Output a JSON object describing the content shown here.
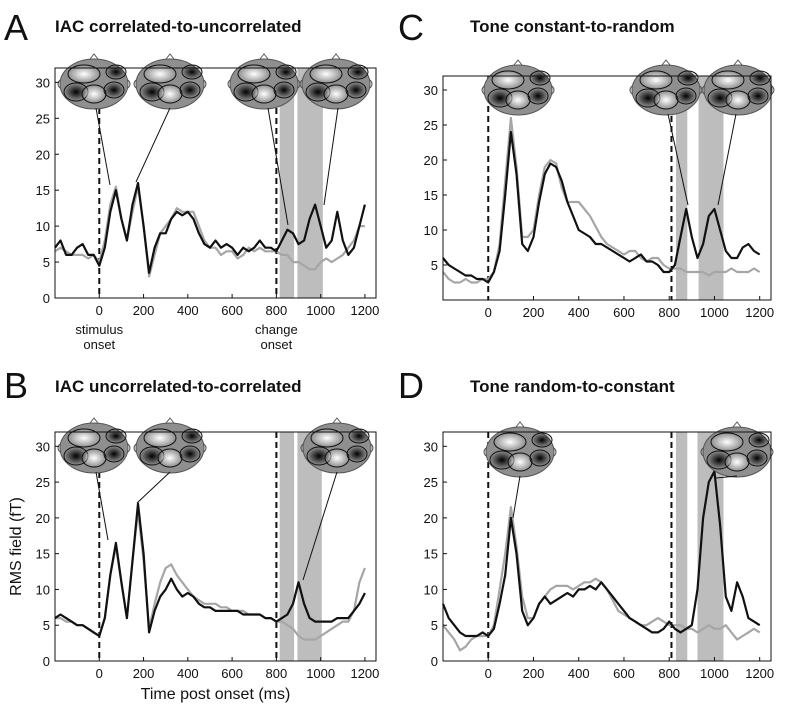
{
  "chart_data": [
    {
      "type": "line",
      "panel_label": "A",
      "title": "IAC correlated-to-uncorrelated",
      "annotations": [
        "stimulus onset",
        "change onset"
      ],
      "x": [
        -200,
        -175,
        -150,
        -125,
        -100,
        -75,
        -50,
        -25,
        0,
        25,
        50,
        75,
        100,
        125,
        150,
        175,
        200,
        225,
        250,
        275,
        300,
        325,
        350,
        375,
        400,
        425,
        450,
        475,
        500,
        525,
        550,
        575,
        600,
        625,
        650,
        675,
        700,
        725,
        750,
        775,
        800,
        825,
        850,
        875,
        900,
        925,
        950,
        975,
        1000,
        1025,
        1050,
        1075,
        1100,
        1125,
        1150,
        1175,
        1200
      ],
      "series": [
        {
          "color": "#a6a6a6",
          "values": [
            6.5,
            7,
            6.5,
            6,
            6,
            6,
            5.5,
            6,
            5,
            8,
            13,
            15.5,
            11,
            8,
            12,
            15.5,
            10,
            3,
            6,
            9,
            10,
            11,
            12.5,
            12,
            12,
            12,
            10,
            8,
            7,
            7,
            6,
            6.5,
            6.5,
            5.5,
            6,
            7,
            6.5,
            7,
            6.5,
            6.5,
            6.5,
            6,
            6,
            5,
            5,
            4.5,
            4,
            4,
            5,
            5.5,
            5,
            5.5,
            6,
            7,
            8,
            10,
            10
          ]
        },
        {
          "color": "#111111",
          "values": [
            7,
            8,
            6,
            6,
            7,
            7.5,
            6,
            6,
            4.5,
            7,
            12,
            15,
            11,
            8,
            13,
            16,
            10,
            3.5,
            7,
            9,
            9,
            11,
            12,
            11.5,
            12,
            11,
            9,
            7.5,
            7,
            8,
            7,
            7.5,
            7,
            6,
            7,
            6.5,
            7,
            8,
            7,
            7,
            6.5,
            8,
            9.5,
            9,
            7.5,
            8,
            11,
            13,
            10,
            7,
            8,
            12,
            8,
            6,
            7,
            10,
            13
          ]
        }
      ],
      "xlim": [
        -200,
        1250
      ],
      "ylim": [
        0,
        32
      ],
      "xticks": [
        0,
        200,
        400,
        600,
        800,
        1000,
        1200
      ],
      "yticks": [
        0,
        5,
        10,
        15,
        20,
        25,
        30
      ],
      "shaded": [
        [
          815,
          880
        ],
        [
          895,
          1010
        ]
      ],
      "vlines": [
        0,
        800
      ]
    },
    {
      "type": "line",
      "panel_label": "B",
      "title": "IAC uncorrelated-to-correlated",
      "xlabel": "Time post onset (ms)",
      "ylabel": "RMS field (fT)",
      "x": [
        -200,
        -175,
        -150,
        -125,
        -100,
        -75,
        -50,
        -25,
        0,
        25,
        50,
        75,
        100,
        125,
        150,
        175,
        200,
        225,
        250,
        275,
        300,
        325,
        350,
        375,
        400,
        425,
        450,
        475,
        500,
        525,
        550,
        575,
        600,
        625,
        650,
        675,
        700,
        725,
        750,
        775,
        800,
        825,
        850,
        875,
        900,
        925,
        950,
        975,
        1000,
        1025,
        1050,
        1075,
        1100,
        1125,
        1150,
        1175,
        1200
      ],
      "series": [
        {
          "color": "#a6a6a6",
          "values": [
            6,
            6,
            5.5,
            5.5,
            5,
            5,
            4.5,
            4,
            3.5,
            6,
            12,
            16,
            11,
            6,
            14,
            21,
            14,
            4.5,
            8,
            11,
            13,
            13.5,
            12,
            11,
            10,
            9,
            8.5,
            8,
            8,
            8,
            7.5,
            7.5,
            7,
            7,
            7,
            6.5,
            6.5,
            6.5,
            6,
            6,
            5.5,
            5.5,
            5,
            4.5,
            3.5,
            3,
            3,
            3,
            3.5,
            4,
            4.5,
            5,
            5.5,
            5.5,
            7,
            11,
            13
          ]
        },
        {
          "color": "#111111",
          "values": [
            6,
            6.5,
            6,
            5.5,
            5,
            5,
            4.5,
            4,
            3.5,
            6,
            12,
            16.5,
            11,
            6,
            14,
            22,
            15,
            4,
            7,
            9,
            10,
            11.5,
            10,
            9,
            9.5,
            9,
            8,
            7.5,
            7.5,
            7,
            7,
            7,
            7,
            7,
            6.5,
            6.5,
            6.5,
            6.5,
            6,
            6,
            5.5,
            6,
            6.5,
            8,
            11,
            8,
            6,
            5.5,
            5.5,
            5.5,
            5.5,
            6,
            6,
            6,
            7,
            8,
            9.5
          ]
        }
      ],
      "xlim": [
        -200,
        1250
      ],
      "ylim": [
        0,
        32
      ],
      "xticks": [
        0,
        200,
        400,
        600,
        800,
        1000,
        1200
      ],
      "yticks": [
        0,
        5,
        10,
        15,
        20,
        25,
        30
      ],
      "shaded": [
        [
          815,
          880
        ],
        [
          895,
          1005
        ]
      ],
      "vlines": [
        0,
        800
      ]
    },
    {
      "type": "line",
      "panel_label": "C",
      "title": "Tone constant-to-random",
      "x": [
        -200,
        -175,
        -150,
        -125,
        -100,
        -75,
        -50,
        -25,
        0,
        25,
        50,
        75,
        100,
        125,
        150,
        175,
        200,
        225,
        250,
        275,
        300,
        325,
        350,
        375,
        400,
        425,
        450,
        475,
        500,
        525,
        550,
        575,
        600,
        625,
        650,
        675,
        700,
        725,
        750,
        775,
        800,
        825,
        850,
        875,
        900,
        925,
        950,
        975,
        1000,
        1025,
        1050,
        1075,
        1100,
        1125,
        1150,
        1175,
        1200
      ],
      "series": [
        {
          "color": "#a6a6a6",
          "values": [
            4,
            3,
            2.5,
            2.5,
            3,
            2.5,
            2.5,
            3,
            3,
            4,
            8,
            17,
            26,
            19,
            9,
            9,
            10,
            15,
            19,
            20,
            19.5,
            16,
            14,
            14,
            14,
            13,
            12,
            10.5,
            9,
            8,
            7.5,
            7,
            6.5,
            7,
            7,
            6,
            5.5,
            6,
            6,
            5,
            4.5,
            4.5,
            4.5,
            4,
            4,
            4,
            4,
            3.5,
            4,
            4,
            4,
            4.5,
            4,
            4,
            4,
            4.5,
            4
          ]
        },
        {
          "color": "#111111",
          "values": [
            6,
            5,
            4.5,
            4,
            3.5,
            3.5,
            3,
            3,
            2.5,
            4,
            7,
            15,
            24,
            18,
            8,
            7,
            9,
            14,
            18,
            19.5,
            19,
            17,
            14,
            12,
            10,
            9.5,
            9,
            8,
            8,
            7.5,
            7,
            6.5,
            6,
            5.5,
            6,
            6.5,
            5.5,
            5.5,
            5,
            4,
            4,
            5,
            9,
            13,
            9,
            6,
            8,
            12,
            13,
            10,
            7,
            6,
            6,
            7.5,
            8,
            7,
            6.5
          ]
        }
      ],
      "xlim": [
        -200,
        1250
      ],
      "ylim": [
        0,
        32
      ],
      "xticks": [
        0,
        200,
        400,
        600,
        800,
        1000,
        1200
      ],
      "yticks": [
        5,
        10,
        15,
        20,
        25,
        30
      ],
      "shaded": [
        [
          830,
          880
        ],
        [
          930,
          1040
        ]
      ],
      "vlines": [
        0,
        810
      ]
    },
    {
      "type": "line",
      "panel_label": "D",
      "title": "Tone random-to-constant",
      "x": [
        -200,
        -175,
        -150,
        -125,
        -100,
        -75,
        -50,
        -25,
        0,
        25,
        50,
        75,
        100,
        125,
        150,
        175,
        200,
        225,
        250,
        275,
        300,
        325,
        350,
        375,
        400,
        425,
        450,
        475,
        500,
        525,
        550,
        575,
        600,
        625,
        650,
        675,
        700,
        725,
        750,
        775,
        800,
        825,
        850,
        875,
        900,
        925,
        950,
        975,
        1000,
        1025,
        1050,
        1075,
        1100,
        1125,
        1150,
        1175,
        1200
      ],
      "series": [
        {
          "color": "#a6a6a6",
          "values": [
            5,
            4,
            3,
            1.5,
            2,
            3,
            3.5,
            3.5,
            3.5,
            5,
            10,
            15,
            21.5,
            16,
            9,
            6,
            6,
            8,
            9,
            10,
            10.5,
            10.5,
            10.5,
            10,
            10.5,
            11,
            11,
            11.5,
            11,
            10,
            8.5,
            7,
            6.5,
            6,
            5.5,
            5,
            5,
            5.5,
            6,
            5.5,
            5,
            5,
            5,
            4.5,
            4.5,
            4,
            4.5,
            5,
            4.5,
            4.5,
            5,
            4,
            3,
            3.5,
            4,
            4.5,
            4
          ]
        },
        {
          "color": "#111111",
          "values": [
            8,
            6,
            5,
            4,
            3.5,
            3.5,
            3.5,
            4,
            3.5,
            4.5,
            8,
            12,
            20,
            15,
            7,
            5,
            6,
            8,
            9,
            8,
            8.5,
            9,
            9.5,
            9,
            10,
            10,
            10.5,
            10,
            11,
            10,
            9,
            8,
            7,
            6,
            5.5,
            5,
            4.5,
            4,
            4,
            4.5,
            5.5,
            4.5,
            4,
            4.5,
            5,
            10,
            20,
            25,
            26.5,
            19,
            9,
            7,
            11,
            9,
            6,
            5.5,
            5
          ]
        }
      ],
      "xlim": [
        -200,
        1250
      ],
      "ylim": [
        0,
        32
      ],
      "xticks": [
        0,
        200,
        400,
        600,
        800,
        1000,
        1200
      ],
      "yticks": [
        0,
        5,
        10,
        15,
        20,
        25,
        30
      ],
      "shaded": [
        [
          830,
          880
        ],
        [
          925,
          1040
        ]
      ],
      "vlines": [
        0,
        810
      ]
    }
  ]
}
